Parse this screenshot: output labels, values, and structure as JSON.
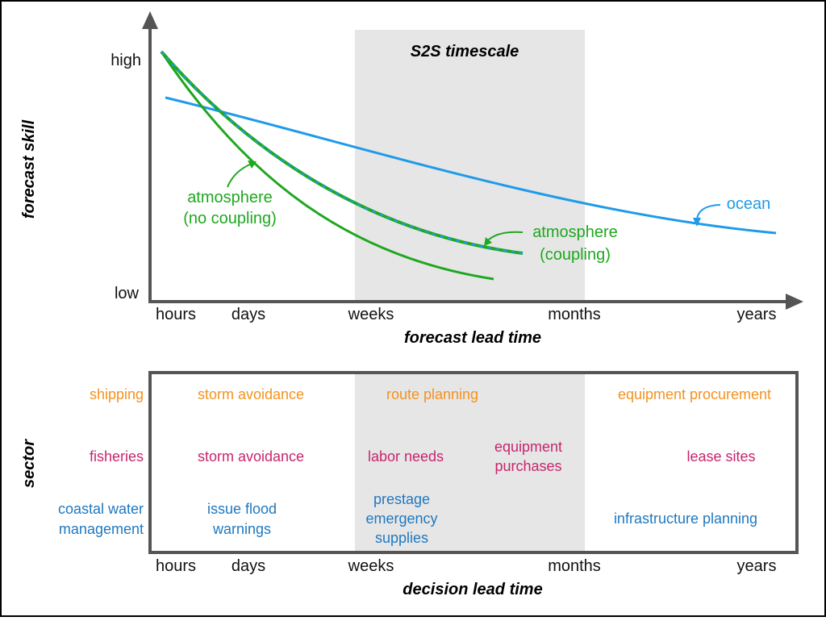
{
  "colors": {
    "atmosphere": "#1fa71f",
    "ocean": "#1e9be8",
    "shipping": "#f4921d",
    "fisheries": "#c8256d",
    "coastal": "#1f78c0",
    "band": "#e6e6e6"
  },
  "top": {
    "band_title": "S2S timescale",
    "y_title": "forecast skill",
    "x_title": "forecast lead time",
    "y_high": "high",
    "y_low": "low",
    "x_ticks": [
      "hours",
      "days",
      "weeks",
      "months",
      "years"
    ],
    "atm_nc_line1": "atmosphere",
    "atm_nc_line2": "(no coupling)",
    "atm_c_line1": "atmosphere",
    "atm_c_line2": "(coupling)",
    "ocean": "ocean"
  },
  "bottom": {
    "y_title": "sector",
    "x_title": "decision lead time",
    "x_ticks": [
      "hours",
      "days",
      "weeks",
      "months",
      "years"
    ],
    "shipping": {
      "label": "shipping",
      "storm": "storm avoidance",
      "route": "route planning",
      "equip": "equipment procurement"
    },
    "fisheries": {
      "label": "fisheries",
      "storm": "storm avoidance",
      "labor": "labor needs",
      "equip1": "equipment",
      "equip2": "purchases",
      "lease": "lease sites"
    },
    "coastal": {
      "label1": "coastal water",
      "label2": "management",
      "flood1": "issue flood",
      "flood2": "warnings",
      "pre1": "prestage",
      "pre2": "emergency",
      "pre3": "supplies",
      "infra": "infrastructure planning"
    }
  }
}
